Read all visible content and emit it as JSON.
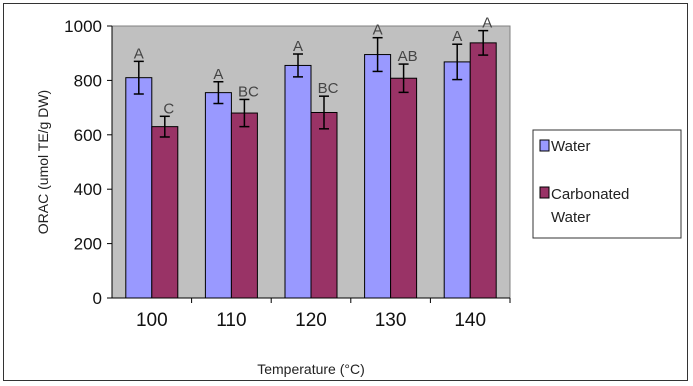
{
  "chart_data": {
    "type": "bar",
    "title": "",
    "xlabel": "Temperature (°C)",
    "ylabel": "ORAC (umol TE/g DW)",
    "ylim": [
      0,
      1000
    ],
    "yticks": [
      0,
      200,
      400,
      600,
      800,
      1000
    ],
    "categories": [
      "100",
      "110",
      "120",
      "130",
      "140"
    ],
    "grid": false,
    "legend_position": "right",
    "series": [
      {
        "name": "Water",
        "color": "#9999ff",
        "values": [
          810,
          755,
          855,
          895,
          868
        ],
        "errors": [
          60,
          40,
          42,
          62,
          65
        ],
        "labels": [
          "A",
          "A",
          "A",
          "A",
          "A"
        ]
      },
      {
        "name": "Carbonated Water",
        "color": "#993366",
        "values": [
          630,
          680,
          682,
          808,
          938
        ],
        "errors": [
          38,
          50,
          60,
          52,
          45
        ],
        "labels": [
          "C",
          "BC",
          "BC",
          "AB",
          "A"
        ]
      }
    ]
  }
}
